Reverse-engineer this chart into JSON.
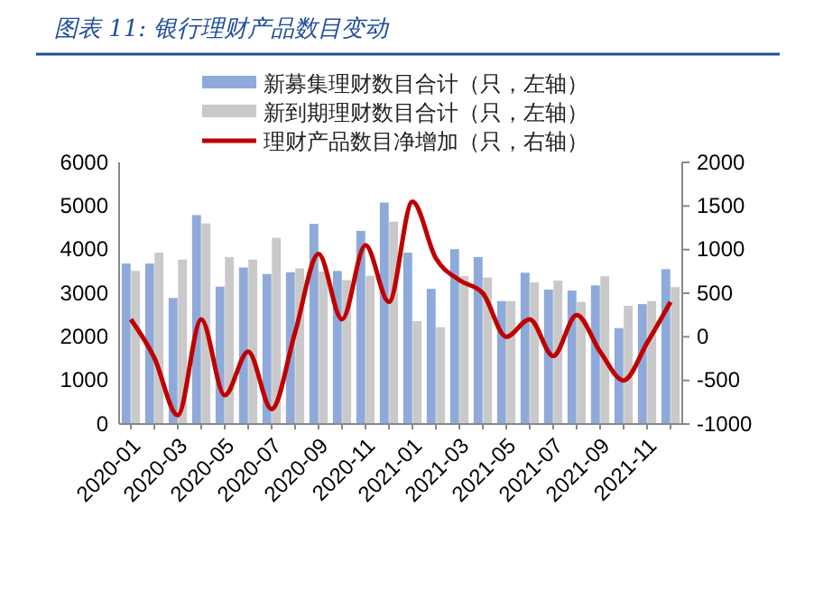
{
  "chart_data": {
    "type": "bar",
    "title": "图表 11:  银行理财产品数目变动",
    "categories": [
      "2020-01",
      null,
      "2020-03",
      null,
      "2020-05",
      null,
      "2020-07",
      null,
      "2020-09",
      null,
      "2020-11",
      null,
      "2021-01",
      null,
      "2021-03",
      null,
      "2021-05",
      null,
      "2021-07",
      null,
      "2021-09",
      null,
      "2021-11",
      null
    ],
    "series": [
      {
        "name": "新募集理财数目合计（只，左轴）",
        "color": "#8eaadb",
        "values": [
          3680,
          3680,
          2890,
          4790,
          3150,
          3590,
          3440,
          3480,
          4590,
          3510,
          4430,
          5080,
          3930,
          3100,
          4010,
          3830,
          2820,
          3470,
          3080,
          3060,
          3180,
          2200,
          2750,
          3550
        ]
      },
      {
        "name": "新到期理财数目合计（只，左轴）",
        "color": "#c9c9c9",
        "values": [
          3510,
          3930,
          3770,
          4600,
          3830,
          3770,
          4270,
          3570,
          3500,
          3300,
          3400,
          4640,
          2360,
          2220,
          3390,
          3360,
          2820,
          3250,
          3290,
          2800,
          3390,
          2710,
          2820,
          3140
        ]
      },
      {
        "name": "理财产品数目净增加（只，右轴）",
        "type": "line",
        "axis": "y2",
        "color": "#c00000",
        "values": [
          200,
          -240,
          -900,
          200,
          -670,
          -170,
          -830,
          50,
          950,
          200,
          1050,
          400,
          1550,
          900,
          650,
          500,
          0,
          200,
          -220,
          250,
          -170,
          -500,
          -70,
          400
        ]
      }
    ],
    "ylim": [
      0,
      6000
    ],
    "yticks": [
      0,
      1000,
      2000,
      3000,
      4000,
      5000,
      6000
    ],
    "y2lim": [
      -1000,
      2000
    ],
    "y2ticks": [
      -1000,
      -500,
      0,
      500,
      1000,
      1500,
      2000
    ],
    "grid": false,
    "legend": "top",
    "marker": "none",
    "line_style": "solid"
  }
}
